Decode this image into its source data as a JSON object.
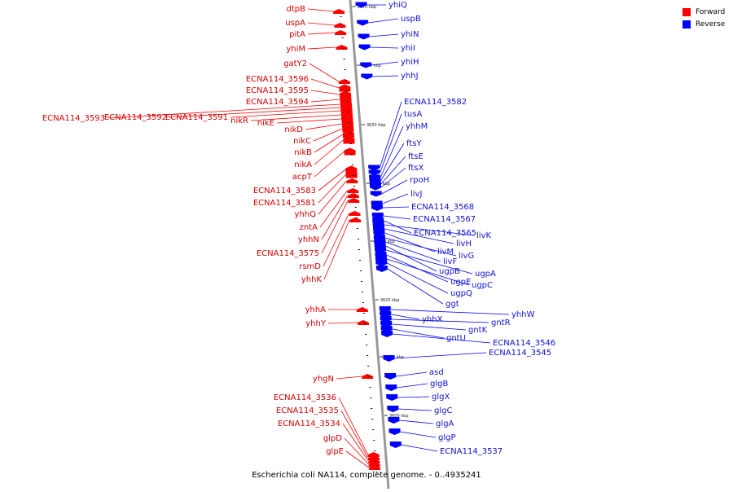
{
  "colors": {
    "forward": "#ff0000",
    "reverse": "#0000ff",
    "forward_label": "#d40000",
    "reverse_label": "#1010d0",
    "axis": "#999999"
  },
  "legend": {
    "items": [
      {
        "label": "Forward",
        "strand": "forward"
      },
      {
        "label": "Reverse",
        "strand": "reverse"
      }
    ]
  },
  "footer": {
    "caption": "Escherichia coli NA114, complete genome. - 0..4935241"
  },
  "ticks": [
    "3670 kbp",
    "3660 kbp",
    "3650 kbp",
    "3640 kbp",
    "3630 kbp",
    "3620 kbp",
    "3610 kbp",
    "3600 kbp"
  ],
  "forward_genes": [
    "dtpB",
    "uspA",
    "pitA",
    "yhiM",
    "gatY2",
    "ECNA114_3596",
    "ECNA114_3595",
    "ECNA114_3594",
    "ECNA114_3593",
    "ECNA114_3592",
    "ECNA114_3591",
    "nikR",
    "nikE",
    "nikD",
    "nikC",
    "nikB",
    "nikA",
    "acpT",
    "ECNA114_3583",
    "ECNA114_3581",
    "yhhQ",
    "zntA",
    "yhhN",
    "ECNA114_3575",
    "rsmD",
    "yhhK",
    "yhhA",
    "yhhY",
    "yhgN",
    "ECNA114_3536",
    "ECNA114_3535",
    "ECNA114_3534",
    "glpD",
    "glpE"
  ],
  "reverse_genes": [
    "yhiQ",
    "uspB",
    "yhiN",
    "yhiI",
    "yhiH",
    "yhhJ",
    "ECNA114_3582",
    "tusA",
    "yhhM",
    "ftsY",
    "ftsE",
    "ftsX",
    "rpoH",
    "livJ",
    "ECNA114_3568",
    "ECNA114_3567",
    "ECNA114_3565",
    "livK",
    "livH",
    "livM",
    "livG",
    "livF",
    "ugpB",
    "ugpA",
    "ugpE",
    "ugpC",
    "ugpQ",
    "ggt",
    "yhhW",
    "yhhX",
    "gntR",
    "gntK",
    "gntU",
    "ECNA114_3546",
    "ECNA114_3545",
    "asd",
    "glgB",
    "glgX",
    "glgC",
    "glgA",
    "glgP",
    "ECNA114_3537"
  ]
}
